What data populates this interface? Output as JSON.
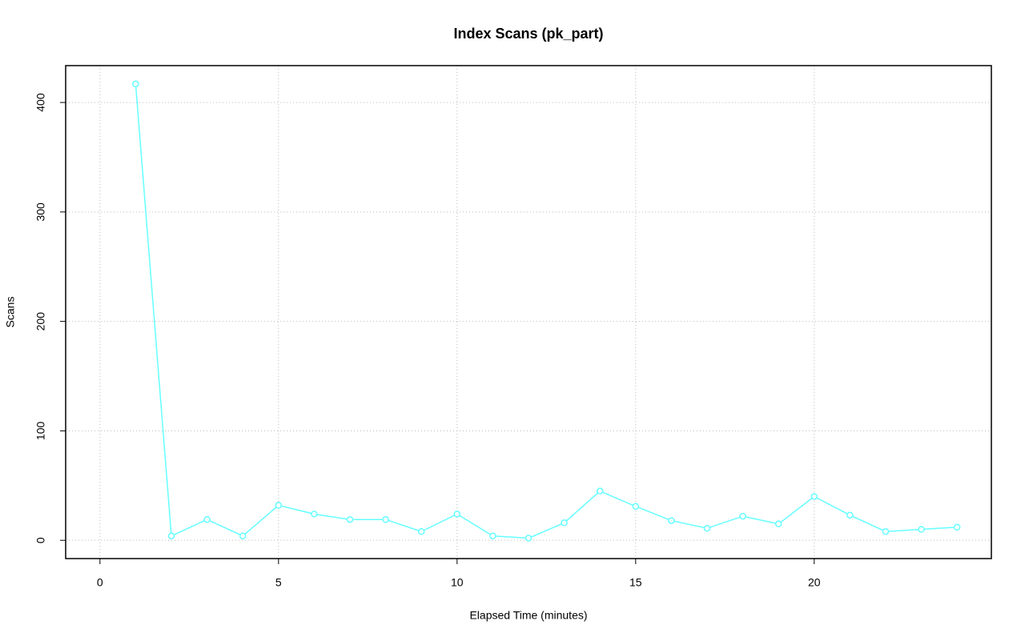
{
  "chart_data": {
    "type": "line",
    "title": "Index Scans (pk_part)",
    "x_label": "Elapsed Time (minutes)",
    "y_label": "Scans",
    "x": [
      1,
      2,
      3,
      4,
      5,
      6,
      7,
      8,
      9,
      10,
      11,
      12,
      13,
      14,
      15,
      16,
      17,
      18,
      19,
      20,
      21,
      22,
      23,
      24
    ],
    "values": [
      417,
      4,
      19,
      4,
      32,
      24,
      19,
      19,
      8,
      24,
      4,
      2,
      16,
      45,
      31,
      18,
      11,
      22,
      15,
      40,
      23,
      8,
      10,
      12
    ],
    "color": "#66ffff",
    "xlim": [
      -0.96,
      24.96
    ],
    "xticks": [
      0,
      5,
      10,
      15,
      20
    ],
    "ylim": [
      -16.68,
      433.68
    ],
    "yticks": [
      0,
      100,
      200,
      300,
      400
    ],
    "grid": true
  }
}
